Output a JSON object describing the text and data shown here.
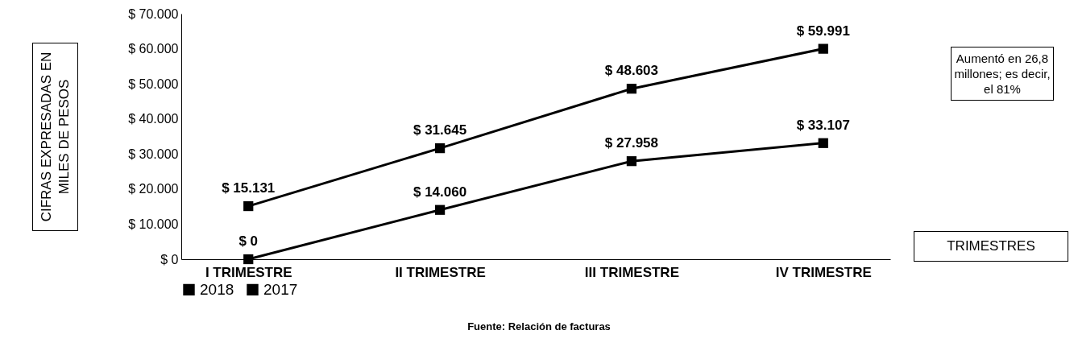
{
  "chart_data": {
    "type": "line",
    "ylabel": "CIFRAS EXPRESADAS EN MILES DE PESOS",
    "xlabel": "TRIMESTRES",
    "categories": [
      "I TRIMESTRE",
      "II TRIMESTRE",
      "III TRIMESTRE",
      "IV TRIMESTRE"
    ],
    "series": [
      {
        "name": "2018",
        "color": "#000000",
        "values": [
          15131,
          31645,
          48603,
          59991
        ],
        "value_labels": [
          "$ 15.131",
          "$ 31.645",
          "$ 48.603",
          "$ 59.991"
        ]
      },
      {
        "name": "2017",
        "color": "#000000",
        "values": [
          0,
          14060,
          27958,
          33107
        ],
        "value_labels": [
          "$ 0",
          "$ 14.060",
          "$ 27.958",
          "$ 33.107"
        ]
      }
    ],
    "ylim": [
      0,
      70000
    ],
    "yticks": [
      {
        "value": 0,
        "label": "$ 0"
      },
      {
        "value": 10000,
        "label": "$ 10.000"
      },
      {
        "value": 20000,
        "label": "$ 20.000"
      },
      {
        "value": 30000,
        "label": "$ 30.000"
      },
      {
        "value": 40000,
        "label": "$ 40.000"
      },
      {
        "value": 50000,
        "label": "$ 50.000"
      },
      {
        "value": 60000,
        "label": "$ 60.000"
      },
      {
        "value": 70000,
        "label": "$ 70.000"
      }
    ],
    "marker": "square",
    "grid": false,
    "legend": "bottom",
    "annotations": [
      "Aumentó en 26,8 millones; es decir, el 81%",
      "Fuente: Relación de facturas"
    ]
  }
}
